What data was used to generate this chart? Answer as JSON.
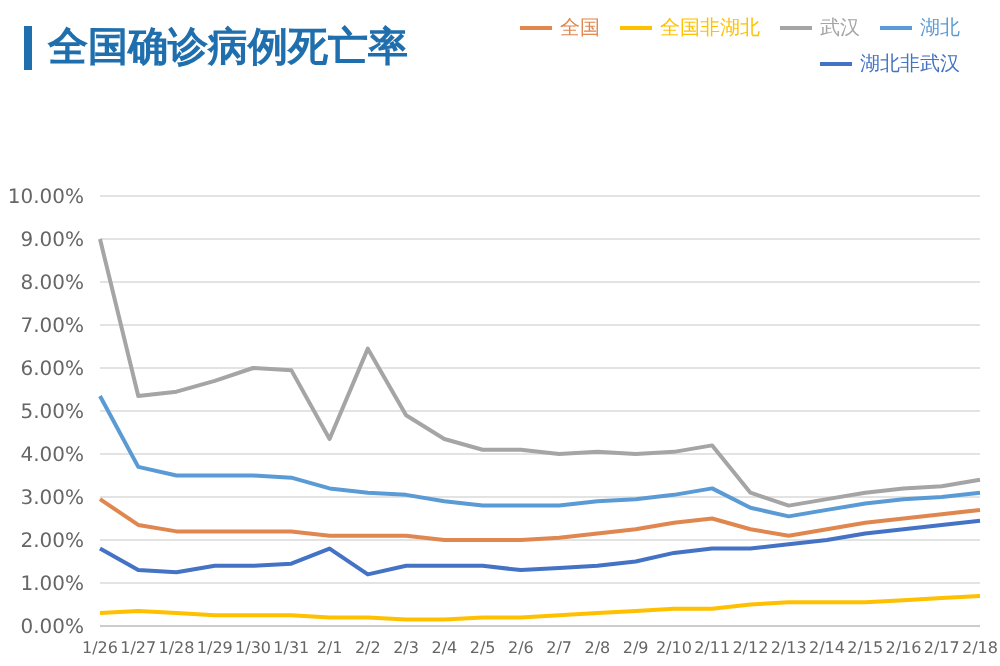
{
  "chart_data": {
    "type": "line",
    "title": "全国确诊病例死亡率",
    "categories": [
      "1/26",
      "1/27",
      "1/28",
      "1/29",
      "1/30",
      "1/31",
      "2/1",
      "2/2",
      "2/3",
      "2/4",
      "2/5",
      "2/6",
      "2/7",
      "2/8",
      "2/9",
      "2/10",
      "2/11",
      "2/12",
      "2/13",
      "2/14",
      "2/15",
      "2/16",
      "2/17",
      "2/18"
    ],
    "series": [
      {
        "name": "全国",
        "color": "#e0874f",
        "values": [
          2.95,
          2.35,
          2.2,
          2.2,
          2.2,
          2.2,
          2.1,
          2.1,
          2.1,
          2.0,
          2.0,
          2.0,
          2.05,
          2.15,
          2.25,
          2.4,
          2.5,
          2.25,
          2.1,
          2.25,
          2.4,
          2.5,
          2.6,
          2.7
        ]
      },
      {
        "name": "湖北",
        "color": "#5b9bd5",
        "values": [
          5.35,
          3.7,
          3.5,
          3.5,
          3.5,
          3.45,
          3.2,
          3.1,
          3.05,
          2.9,
          2.8,
          2.8,
          2.8,
          2.9,
          2.95,
          3.05,
          3.2,
          2.75,
          2.55,
          2.7,
          2.85,
          2.95,
          3.0,
          3.1
        ]
      },
      {
        "name": "武汉",
        "color": "#a5a5a5",
        "values": [
          9.0,
          5.35,
          5.45,
          5.7,
          6.0,
          5.95,
          4.35,
          6.45,
          4.9,
          4.35,
          4.1,
          4.1,
          4.0,
          4.05,
          4.0,
          4.05,
          4.2,
          3.1,
          2.8,
          2.95,
          3.1,
          3.2,
          3.25,
          3.4
        ]
      },
      {
        "name": "全国非湖北",
        "color": "#ffc000",
        "values": [
          0.3,
          0.35,
          0.3,
          0.25,
          0.25,
          0.25,
          0.2,
          0.2,
          0.15,
          0.15,
          0.2,
          0.2,
          0.25,
          0.3,
          0.35,
          0.4,
          0.4,
          0.5,
          0.55,
          0.55,
          0.55,
          0.6,
          0.65,
          0.7
        ]
      },
      {
        "name": "湖北非武汉",
        "color": "#4472c4",
        "values": [
          1.8,
          1.3,
          1.25,
          1.4,
          1.4,
          1.45,
          1.8,
          1.2,
          1.4,
          1.4,
          1.4,
          1.3,
          1.35,
          1.4,
          1.5,
          1.7,
          1.8,
          1.8,
          1.9,
          2.0,
          2.15,
          2.25,
          2.35,
          2.45
        ]
      }
    ],
    "ylim": [
      0,
      10
    ],
    "yticks": [
      {
        "value": 0,
        "label": "0.00%"
      },
      {
        "value": 1,
        "label": "1.00%"
      },
      {
        "value": 2,
        "label": "2.00%"
      },
      {
        "value": 3,
        "label": "3.00%"
      },
      {
        "value": 4,
        "label": "4.00%"
      },
      {
        "value": 5,
        "label": "5.00%"
      },
      {
        "value": 6,
        "label": "6.00%"
      },
      {
        "value": 7,
        "label": "7.00%"
      },
      {
        "value": 8,
        "label": "8.00%"
      },
      {
        "value": 9,
        "label": "9.00%"
      },
      {
        "value": 10,
        "label": "10.00%"
      }
    ],
    "grid": "y",
    "legend": "top right",
    "marker": "none",
    "line_style": "solid"
  }
}
